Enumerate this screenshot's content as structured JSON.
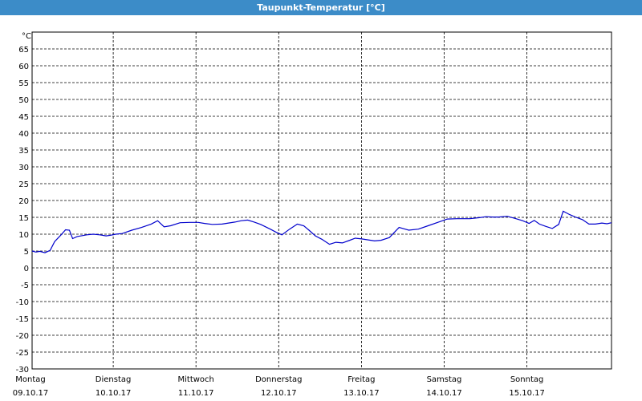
{
  "window": {
    "title": "Taupunkt-Temperatur [°C]"
  },
  "chart_data": {
    "type": "line",
    "title": "Taupunkt-Temperatur [°C]",
    "ylabel": "°C",
    "ylim": [
      -30,
      70
    ],
    "y_ticks": [
      65,
      60,
      55,
      50,
      45,
      40,
      35,
      30,
      25,
      20,
      15,
      10,
      5,
      0,
      -5,
      -10,
      -15,
      -20,
      -25,
      -30
    ],
    "xlim_days": [
      0,
      7
    ],
    "x_days": [
      {
        "day": "Montag",
        "date": "09.10.17"
      },
      {
        "day": "Dienstag",
        "date": "10.10.17"
      },
      {
        "day": "Mittwoch",
        "date": "11.10.17"
      },
      {
        "day": "Donnerstag",
        "date": "12.10.17"
      },
      {
        "day": "Freitag",
        "date": "13.10.17"
      },
      {
        "day": "Samstag",
        "date": "14.10.17"
      },
      {
        "day": "Sonntag",
        "date": "15.10.17"
      }
    ],
    "grid": true,
    "line_color": "#0000cc",
    "series": [
      {
        "values": [
          [
            0.0,
            5.0
          ],
          [
            0.06,
            4.7
          ],
          [
            0.12,
            4.9
          ],
          [
            0.2,
            4.5
          ],
          [
            0.28,
            5.2
          ],
          [
            0.35,
            7.8
          ],
          [
            0.45,
            9.8
          ],
          [
            0.52,
            11.3
          ],
          [
            0.58,
            11.2
          ],
          [
            0.63,
            8.7
          ],
          [
            0.7,
            9.3
          ],
          [
            0.85,
            9.8
          ],
          [
            0.95,
            10.0
          ],
          [
            1.05,
            9.8
          ],
          [
            1.15,
            9.5
          ],
          [
            1.22,
            9.7
          ],
          [
            1.3,
            10.0
          ],
          [
            1.4,
            10.2
          ],
          [
            1.55,
            11.2
          ],
          [
            1.7,
            12.0
          ],
          [
            1.85,
            13.0
          ],
          [
            1.95,
            14.0
          ],
          [
            2.05,
            12.2
          ],
          [
            2.15,
            12.5
          ],
          [
            2.3,
            13.4
          ],
          [
            2.45,
            13.5
          ],
          [
            2.58,
            13.5
          ],
          [
            2.68,
            13.2
          ],
          [
            2.8,
            12.9
          ],
          [
            2.95,
            13.0
          ],
          [
            3.05,
            13.3
          ],
          [
            3.15,
            13.6
          ],
          [
            3.25,
            14.0
          ],
          [
            3.35,
            14.2
          ],
          [
            3.45,
            13.6
          ],
          [
            3.55,
            12.9
          ],
          [
            3.7,
            11.5
          ],
          [
            3.8,
            10.5
          ],
          [
            3.88,
            9.8
          ],
          [
            4.0,
            11.5
          ],
          [
            4.12,
            13.0
          ],
          [
            4.22,
            12.5
          ],
          [
            4.3,
            11.2
          ],
          [
            4.4,
            9.5
          ],
          [
            4.5,
            8.5
          ],
          [
            4.62,
            7.0
          ],
          [
            4.72,
            7.6
          ],
          [
            4.82,
            7.4
          ],
          [
            4.92,
            8.1
          ],
          [
            5.02,
            8.8
          ],
          [
            5.12,
            8.6
          ],
          [
            5.22,
            8.3
          ],
          [
            5.32,
            8.0
          ],
          [
            5.42,
            8.2
          ],
          [
            5.55,
            9.0
          ],
          [
            5.7,
            12.0
          ],
          [
            5.85,
            11.2
          ],
          [
            6.0,
            11.5
          ],
          [
            6.15,
            12.5
          ],
          [
            6.3,
            13.5
          ],
          [
            6.45,
            14.5
          ],
          [
            6.6,
            14.6
          ],
          [
            6.8,
            14.6
          ],
          [
            6.95,
            14.9
          ],
          [
            7.05,
            15.2
          ],
          [
            7.15,
            15.1
          ],
          [
            7.25,
            15.1
          ],
          [
            7.38,
            15.3
          ],
          [
            7.5,
            14.7
          ],
          [
            7.62,
            14.0
          ],
          [
            7.72,
            13.2
          ],
          [
            7.8,
            14.1
          ],
          [
            7.88,
            13.0
          ],
          [
            7.98,
            12.3
          ],
          [
            8.08,
            11.7
          ],
          [
            8.18,
            12.9
          ],
          [
            8.25,
            16.8
          ],
          [
            8.35,
            15.8
          ],
          [
            8.45,
            15.0
          ],
          [
            8.55,
            14.3
          ],
          [
            8.65,
            13.0
          ],
          [
            8.75,
            13.0
          ],
          [
            8.85,
            13.3
          ],
          [
            8.93,
            13.1
          ],
          [
            9.0,
            13.4
          ]
        ]
      }
    ]
  }
}
